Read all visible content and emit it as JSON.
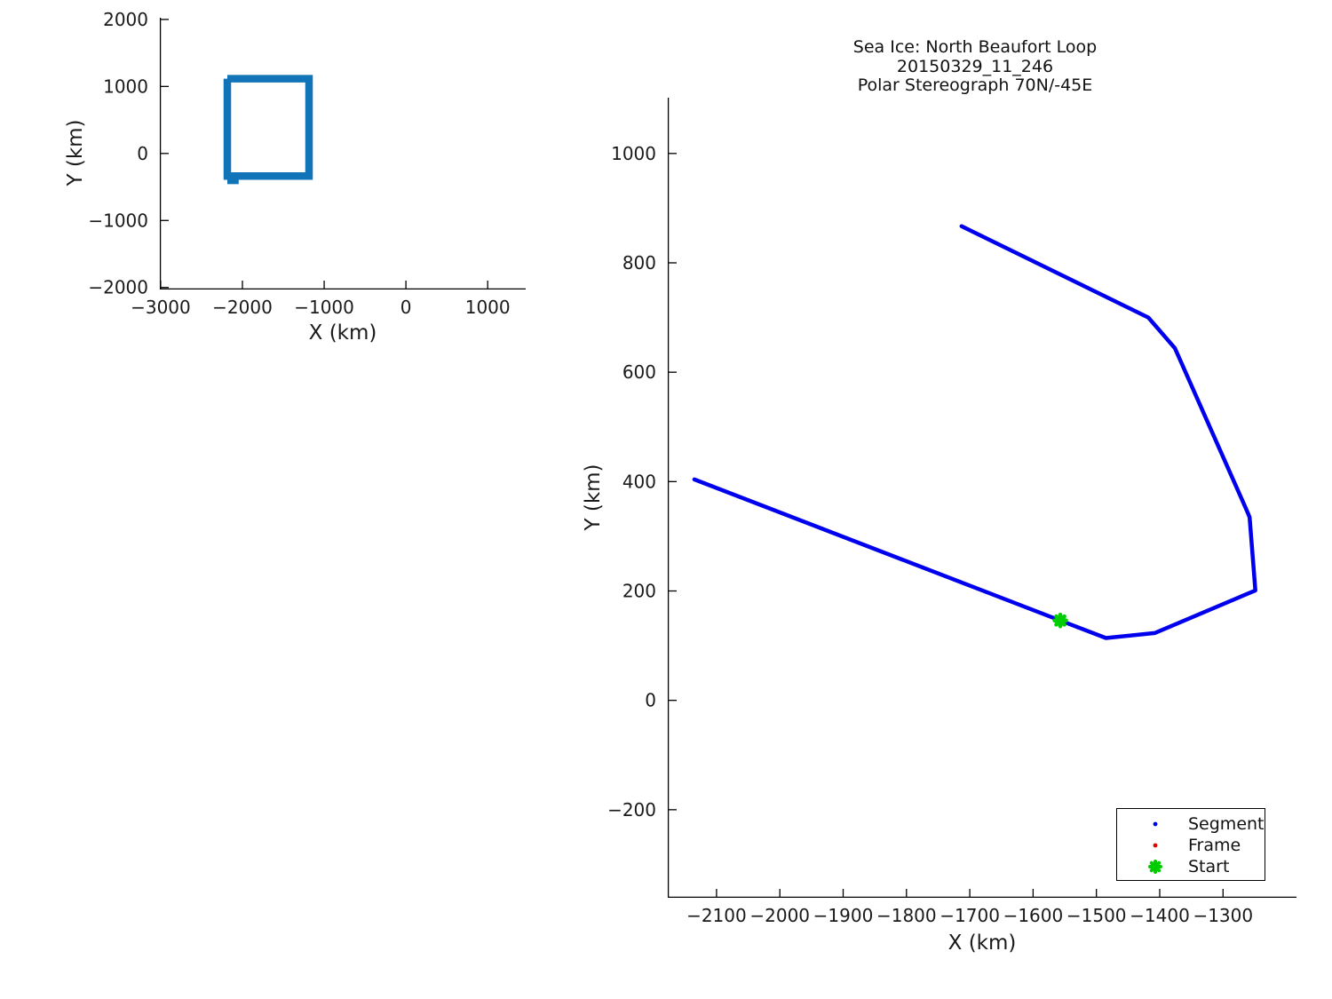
{
  "figure": {
    "background": "#ffffff",
    "text_color": "#1a1a1a",
    "spine_color": "#000000"
  },
  "chart_data": [
    {
      "id": "overview",
      "type": "line",
      "title": "",
      "xlabel": "X (km)",
      "ylabel": "Y (km)",
      "xlim": [
        -3010,
        1465
      ],
      "ylim": [
        -2030,
        2025
      ],
      "xticks": [
        -3000,
        -2000,
        -1000,
        0,
        1000
      ],
      "yticks": [
        -2000,
        -1000,
        0,
        1000,
        2000
      ],
      "grid": false,
      "legend": null,
      "series": [
        {
          "name": "coverage-box",
          "color": "#1274b8",
          "width": 8.5,
          "linejoin": "miter",
          "linecap": "butt",
          "x": [
            -2185,
            -1185,
            -1185,
            -2185,
            -2185
          ],
          "y": [
            1116,
            1116,
            -336,
            -336,
            1116
          ]
        },
        {
          "name": "coverage-box-overlap",
          "color": "#1274b8",
          "width": 8.5,
          "linejoin": "miter",
          "linecap": "butt",
          "x": [
            -2185,
            -2045
          ],
          "y": [
            -402,
            -402
          ]
        }
      ],
      "markers": []
    },
    {
      "id": "track",
      "type": "line",
      "title_lines": [
        "Sea Ice: North Beaufort Loop",
        "20150329_11_246",
        "Polar Stereograph 70N/-45E"
      ],
      "xlabel": "X (km)",
      "ylabel": "Y (km)",
      "xlim": [
        -2177,
        -1184
      ],
      "ylim": [
        -361,
        1102
      ],
      "xticks": [
        -2100,
        -2000,
        -1900,
        -1800,
        -1700,
        -1600,
        -1500,
        -1400,
        -1300
      ],
      "yticks": [
        -200,
        0,
        200,
        400,
        600,
        800,
        1000
      ],
      "grid": false,
      "series": [
        {
          "name": "segment-track",
          "color": "#0000ee",
          "width": 4.5,
          "linejoin": "round",
          "linecap": "round",
          "x": [
            -2135,
            -1557,
            -1485,
            -1408,
            -1249,
            -1258,
            -1264,
            -1376,
            -1418,
            -1713
          ],
          "y": [
            404,
            146,
            114,
            123,
            201,
            335,
            351,
            644,
            700,
            867
          ]
        }
      ],
      "markers": [
        {
          "name": "start-marker",
          "shape": "star",
          "color": "#00cd00",
          "x": -1557,
          "y": 146,
          "radius": 6.5,
          "stroke": 4.5
        }
      ],
      "legend": {
        "position": "lower-right",
        "entries": [
          {
            "label": "Segment",
            "marker": "dot",
            "color": "#0000ee"
          },
          {
            "label": "Frame",
            "marker": "dot",
            "color": "#e00000"
          },
          {
            "label": "Start",
            "marker": "star",
            "color": "#00cd00"
          }
        ]
      }
    }
  ]
}
